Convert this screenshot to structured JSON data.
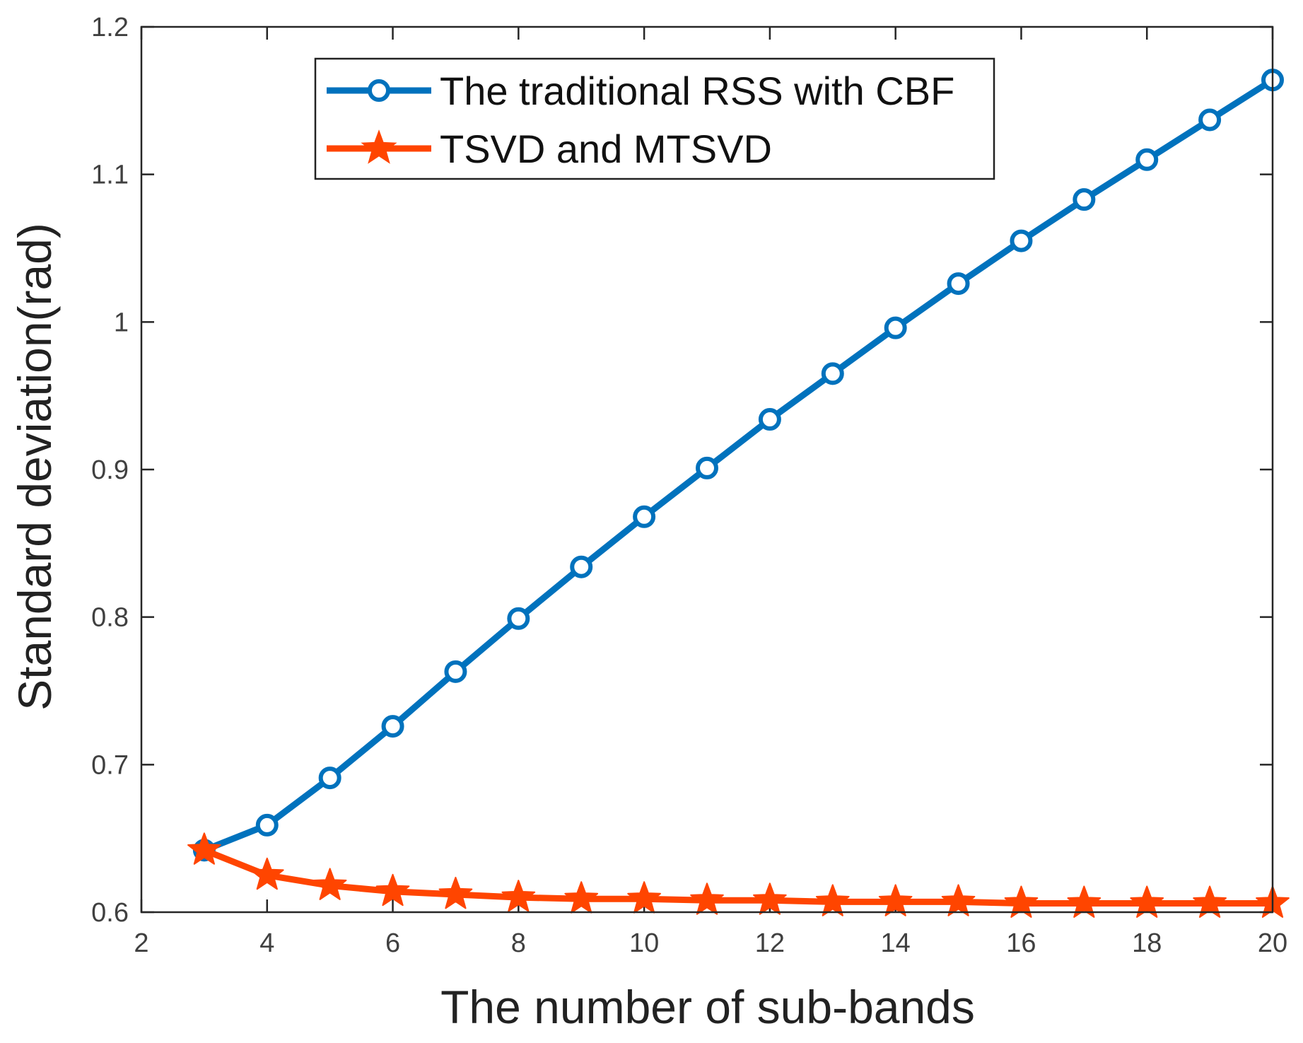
{
  "chart_data": {
    "type": "line",
    "title": "",
    "xlabel": "The number of sub-bands",
    "ylabel": "Standard deviation(rad)",
    "xlim": [
      2,
      20
    ],
    "ylim": [
      0.6,
      1.2
    ],
    "xticks": [
      2,
      4,
      6,
      8,
      10,
      12,
      14,
      16,
      18,
      20
    ],
    "xtick_labels": [
      "2",
      "4",
      "6",
      "8",
      "10",
      "12",
      "14",
      "16",
      "18",
      "20"
    ],
    "yticks": [
      0.6,
      0.7,
      0.8,
      0.9,
      1.0,
      1.1,
      1.2
    ],
    "ytick_labels": [
      "0.6",
      "0.7",
      "0.8",
      "0.9",
      "1",
      "1.1",
      "1.2"
    ],
    "grid": false,
    "legend_position": "top-center",
    "x": [
      3,
      4,
      5,
      6,
      7,
      8,
      9,
      10,
      11,
      12,
      13,
      14,
      15,
      16,
      17,
      18,
      19,
      20
    ],
    "series": [
      {
        "name": "The traditional RSS with CBF",
        "color": "#0072BD",
        "marker": "circle",
        "values": [
          0.642,
          0.659,
          0.691,
          0.726,
          0.763,
          0.799,
          0.834,
          0.868,
          0.901,
          0.934,
          0.965,
          0.996,
          1.026,
          1.055,
          1.083,
          1.11,
          1.137,
          1.164
        ]
      },
      {
        "name": "TSVD and MTSVD",
        "color": "#FF4500",
        "marker": "star",
        "values": [
          0.642,
          0.625,
          0.618,
          0.614,
          0.612,
          0.61,
          0.609,
          0.609,
          0.608,
          0.608,
          0.607,
          0.607,
          0.607,
          0.606,
          0.606,
          0.606,
          0.606,
          0.606
        ]
      }
    ]
  }
}
